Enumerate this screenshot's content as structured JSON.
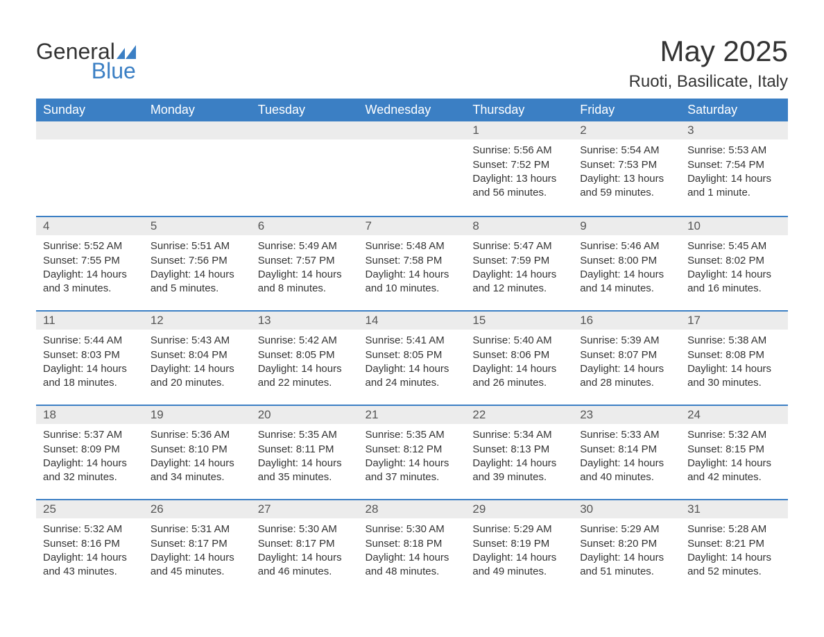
{
  "logo": {
    "general": "General",
    "blue": "Blue"
  },
  "title": "May 2025",
  "location": "Ruoti, Basilicate, Italy",
  "colors": {
    "header_bg": "#3b7fc4",
    "header_text": "#ffffff",
    "daynum_bg": "#ececec",
    "daynum_border": "#3b7fc4",
    "body_text": "#333333",
    "page_bg": "#ffffff"
  },
  "day_headers": [
    "Sunday",
    "Monday",
    "Tuesday",
    "Wednesday",
    "Thursday",
    "Friday",
    "Saturday"
  ],
  "weeks": [
    [
      null,
      null,
      null,
      null,
      {
        "num": "1",
        "sunrise": "Sunrise: 5:56 AM",
        "sunset": "Sunset: 7:52 PM",
        "daylight": "Daylight: 13 hours and 56 minutes."
      },
      {
        "num": "2",
        "sunrise": "Sunrise: 5:54 AM",
        "sunset": "Sunset: 7:53 PM",
        "daylight": "Daylight: 13 hours and 59 minutes."
      },
      {
        "num": "3",
        "sunrise": "Sunrise: 5:53 AM",
        "sunset": "Sunset: 7:54 PM",
        "daylight": "Daylight: 14 hours and 1 minute."
      }
    ],
    [
      {
        "num": "4",
        "sunrise": "Sunrise: 5:52 AM",
        "sunset": "Sunset: 7:55 PM",
        "daylight": "Daylight: 14 hours and 3 minutes."
      },
      {
        "num": "5",
        "sunrise": "Sunrise: 5:51 AM",
        "sunset": "Sunset: 7:56 PM",
        "daylight": "Daylight: 14 hours and 5 minutes."
      },
      {
        "num": "6",
        "sunrise": "Sunrise: 5:49 AM",
        "sunset": "Sunset: 7:57 PM",
        "daylight": "Daylight: 14 hours and 8 minutes."
      },
      {
        "num": "7",
        "sunrise": "Sunrise: 5:48 AM",
        "sunset": "Sunset: 7:58 PM",
        "daylight": "Daylight: 14 hours and 10 minutes."
      },
      {
        "num": "8",
        "sunrise": "Sunrise: 5:47 AM",
        "sunset": "Sunset: 7:59 PM",
        "daylight": "Daylight: 14 hours and 12 minutes."
      },
      {
        "num": "9",
        "sunrise": "Sunrise: 5:46 AM",
        "sunset": "Sunset: 8:00 PM",
        "daylight": "Daylight: 14 hours and 14 minutes."
      },
      {
        "num": "10",
        "sunrise": "Sunrise: 5:45 AM",
        "sunset": "Sunset: 8:02 PM",
        "daylight": "Daylight: 14 hours and 16 minutes."
      }
    ],
    [
      {
        "num": "11",
        "sunrise": "Sunrise: 5:44 AM",
        "sunset": "Sunset: 8:03 PM",
        "daylight": "Daylight: 14 hours and 18 minutes."
      },
      {
        "num": "12",
        "sunrise": "Sunrise: 5:43 AM",
        "sunset": "Sunset: 8:04 PM",
        "daylight": "Daylight: 14 hours and 20 minutes."
      },
      {
        "num": "13",
        "sunrise": "Sunrise: 5:42 AM",
        "sunset": "Sunset: 8:05 PM",
        "daylight": "Daylight: 14 hours and 22 minutes."
      },
      {
        "num": "14",
        "sunrise": "Sunrise: 5:41 AM",
        "sunset": "Sunset: 8:05 PM",
        "daylight": "Daylight: 14 hours and 24 minutes."
      },
      {
        "num": "15",
        "sunrise": "Sunrise: 5:40 AM",
        "sunset": "Sunset: 8:06 PM",
        "daylight": "Daylight: 14 hours and 26 minutes."
      },
      {
        "num": "16",
        "sunrise": "Sunrise: 5:39 AM",
        "sunset": "Sunset: 8:07 PM",
        "daylight": "Daylight: 14 hours and 28 minutes."
      },
      {
        "num": "17",
        "sunrise": "Sunrise: 5:38 AM",
        "sunset": "Sunset: 8:08 PM",
        "daylight": "Daylight: 14 hours and 30 minutes."
      }
    ],
    [
      {
        "num": "18",
        "sunrise": "Sunrise: 5:37 AM",
        "sunset": "Sunset: 8:09 PM",
        "daylight": "Daylight: 14 hours and 32 minutes."
      },
      {
        "num": "19",
        "sunrise": "Sunrise: 5:36 AM",
        "sunset": "Sunset: 8:10 PM",
        "daylight": "Daylight: 14 hours and 34 minutes."
      },
      {
        "num": "20",
        "sunrise": "Sunrise: 5:35 AM",
        "sunset": "Sunset: 8:11 PM",
        "daylight": "Daylight: 14 hours and 35 minutes."
      },
      {
        "num": "21",
        "sunrise": "Sunrise: 5:35 AM",
        "sunset": "Sunset: 8:12 PM",
        "daylight": "Daylight: 14 hours and 37 minutes."
      },
      {
        "num": "22",
        "sunrise": "Sunrise: 5:34 AM",
        "sunset": "Sunset: 8:13 PM",
        "daylight": "Daylight: 14 hours and 39 minutes."
      },
      {
        "num": "23",
        "sunrise": "Sunrise: 5:33 AM",
        "sunset": "Sunset: 8:14 PM",
        "daylight": "Daylight: 14 hours and 40 minutes."
      },
      {
        "num": "24",
        "sunrise": "Sunrise: 5:32 AM",
        "sunset": "Sunset: 8:15 PM",
        "daylight": "Daylight: 14 hours and 42 minutes."
      }
    ],
    [
      {
        "num": "25",
        "sunrise": "Sunrise: 5:32 AM",
        "sunset": "Sunset: 8:16 PM",
        "daylight": "Daylight: 14 hours and 43 minutes."
      },
      {
        "num": "26",
        "sunrise": "Sunrise: 5:31 AM",
        "sunset": "Sunset: 8:17 PM",
        "daylight": "Daylight: 14 hours and 45 minutes."
      },
      {
        "num": "27",
        "sunrise": "Sunrise: 5:30 AM",
        "sunset": "Sunset: 8:17 PM",
        "daylight": "Daylight: 14 hours and 46 minutes."
      },
      {
        "num": "28",
        "sunrise": "Sunrise: 5:30 AM",
        "sunset": "Sunset: 8:18 PM",
        "daylight": "Daylight: 14 hours and 48 minutes."
      },
      {
        "num": "29",
        "sunrise": "Sunrise: 5:29 AM",
        "sunset": "Sunset: 8:19 PM",
        "daylight": "Daylight: 14 hours and 49 minutes."
      },
      {
        "num": "30",
        "sunrise": "Sunrise: 5:29 AM",
        "sunset": "Sunset: 8:20 PM",
        "daylight": "Daylight: 14 hours and 51 minutes."
      },
      {
        "num": "31",
        "sunrise": "Sunrise: 5:28 AM",
        "sunset": "Sunset: 8:21 PM",
        "daylight": "Daylight: 14 hours and 52 minutes."
      }
    ]
  ]
}
